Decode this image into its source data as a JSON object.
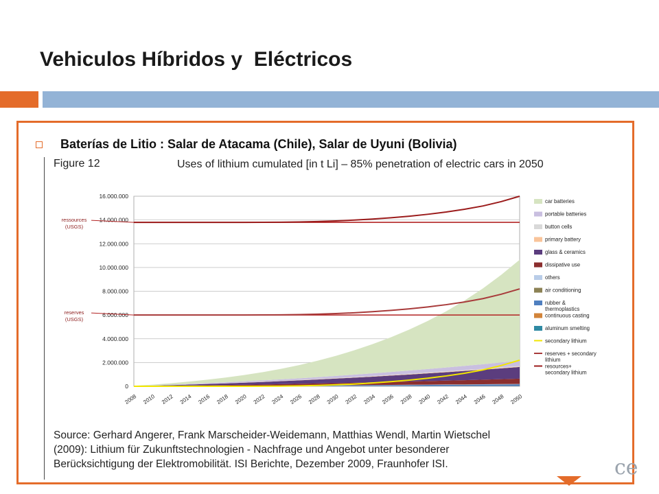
{
  "slide": {
    "title": "Vehiculos Híbridos y  Eléctricos",
    "bullet": "Baterías de Litio : Salar de Atacama (Chile), Salar de Uyuni (Bolivia)",
    "figure_label": "Figure 12",
    "figure_title": "Uses of lithium cumulated [in t Li] – 85% penetration of electric cars in 2050",
    "source_lines": [
      "Source: Gerhard Angerer, Frank Marscheider-Weidemann, Matthias Wendl, Martin Wietschel",
      "(2009): Lithium für Zukunftstechnologien - Nachfrage und Angebot unter besonderer",
      "Berücksichtigung der Elektromobilität. ISI Berichte, Dezember 2009, Fraunhofer ISI."
    ],
    "logo_fragment": "ce",
    "colors": {
      "accent_orange": "#e46c2a",
      "accent_blue": "#93b3d6"
    }
  },
  "chart_data": {
    "type": "area",
    "title": "Uses of lithium cumulated [in t Li] – 85% penetration of electric cars in 2050",
    "xlabel": "",
    "ylabel": "",
    "ylim": [
      0,
      16000000
    ],
    "y_ticks": [
      "16.000.000",
      "14.000.000",
      "12.000.000",
      "10.000.000",
      "8.000.000",
      "6.000.000",
      "4.000.000",
      "2.000.000",
      "0"
    ],
    "y_tick_values": [
      16000000,
      14000000,
      12000000,
      10000000,
      8000000,
      6000000,
      4000000,
      2000000,
      0
    ],
    "x": [
      "2008",
      "2010",
      "2012",
      "2014",
      "2016",
      "2018",
      "2020",
      "2022",
      "2024",
      "2026",
      "2028",
      "2030",
      "2032",
      "2034",
      "2036",
      "2038",
      "2040",
      "2042",
      "2044",
      "2046",
      "2048",
      "2050"
    ],
    "grid": true,
    "legend_position": "right",
    "reference_lines": [
      {
        "label": "ressources (USGS)",
        "label_lines": [
          "ressources",
          "(USGS)"
        ],
        "value": 13800000,
        "color": "#b22222"
      },
      {
        "label": "reserves (USGS)",
        "label_lines": [
          "reserves",
          "(USGS)"
        ],
        "value": 6000000,
        "color": "#b22222"
      }
    ],
    "series": [
      {
        "name": "car batteries",
        "kind": "area",
        "color": "#d6e4c1",
        "values": [
          20000,
          60000,
          120000,
          200000,
          290000,
          400000,
          530000,
          690000,
          880000,
          1110000,
          1380000,
          1690000,
          2050000,
          2460000,
          2920000,
          3450000,
          4050000,
          4730000,
          5500000,
          6380000,
          7380000,
          8500000
        ]
      },
      {
        "name": "portable batteries",
        "kind": "area",
        "color": "#c9bfe0",
        "values": [
          5000,
          15000,
          27000,
          40000,
          55000,
          70000,
          86000,
          103000,
          121000,
          140000,
          160000,
          181000,
          203000,
          226000,
          250000,
          275000,
          301000,
          328000,
          356000,
          385000,
          415000,
          446000
        ]
      },
      {
        "name": "button cells",
        "kind": "area",
        "color": "#d9d9d9",
        "values": [
          1000,
          3000,
          5000,
          7000,
          9000,
          11000,
          13000,
          15000,
          17000,
          19000,
          21000,
          23000,
          25000,
          27000,
          29000,
          31000,
          33000,
          35000,
          37000,
          39000,
          41000,
          43000
        ]
      },
      {
        "name": "primary battery",
        "kind": "area",
        "color": "#f9c49a",
        "values": [
          1000,
          2000,
          4000,
          6000,
          8000,
          10000,
          12000,
          14000,
          16000,
          18000,
          20000,
          22000,
          24000,
          26000,
          28000,
          30000,
          32000,
          34000,
          36000,
          38000,
          40000,
          42000
        ]
      },
      {
        "name": "glass & ceramics",
        "kind": "area",
        "color": "#5b3d7e",
        "values": [
          10000,
          30000,
          55000,
          80000,
          110000,
          140000,
          175000,
          210000,
          250000,
          290000,
          335000,
          380000,
          430000,
          480000,
          535000,
          590000,
          650000,
          710000,
          775000,
          840000,
          910000,
          980000
        ]
      },
      {
        "name": "dissipative use",
        "kind": "area",
        "color": "#8b2e2e",
        "values": [
          5000,
          15000,
          27000,
          40000,
          54000,
          69000,
          85000,
          102000,
          120000,
          139000,
          159000,
          180000,
          202000,
          225000,
          249000,
          274000,
          300000,
          327000,
          355000,
          384000,
          414000,
          445000
        ]
      },
      {
        "name": "others",
        "kind": "area",
        "color": "#b9cde8",
        "values": [
          1000,
          2000,
          3000,
          4000,
          5000,
          6000,
          7000,
          8000,
          9000,
          10000,
          11000,
          12000,
          13000,
          14000,
          15000,
          16000,
          17000,
          18000,
          19000,
          20000,
          21000,
          22000
        ]
      },
      {
        "name": "air conditioning",
        "kind": "area",
        "color": "#8c8255",
        "values": [
          500,
          1000,
          1500,
          2000,
          2500,
          3000,
          3500,
          4000,
          4500,
          5000,
          5500,
          6000,
          6500,
          7000,
          7500,
          8000,
          8500,
          9000,
          9500,
          10000,
          10500,
          11000
        ]
      },
      {
        "name": "rubber & thermoplastics",
        "kind": "area",
        "color": "#4f7fbf",
        "values": [
          2000,
          5000,
          9000,
          13000,
          17000,
          22000,
          27000,
          32000,
          38000,
          44000,
          50000,
          57000,
          64000,
          71000,
          79000,
          87000,
          95000,
          104000,
          113000,
          122000,
          132000,
          142000
        ]
      },
      {
        "name": "continuous casting",
        "kind": "area",
        "color": "#d2843a",
        "values": [
          500,
          1000,
          1500,
          2000,
          2500,
          3000,
          3500,
          4000,
          4500,
          5000,
          5500,
          6000,
          6500,
          7000,
          7500,
          8000,
          8500,
          9000,
          9500,
          10000,
          10500,
          11000
        ]
      },
      {
        "name": "aluminum smelting",
        "kind": "area",
        "color": "#2f8aa3",
        "values": [
          500,
          1000,
          1500,
          2000,
          2500,
          3000,
          3500,
          4000,
          4500,
          5000,
          5500,
          6000,
          6500,
          7000,
          7500,
          8000,
          8500,
          9000,
          9500,
          10000,
          10500,
          11000
        ]
      },
      {
        "name": "secondary lithium",
        "kind": "line",
        "color": "#f2e600",
        "values": [
          0,
          0,
          0,
          0,
          0,
          0,
          0,
          5000,
          15000,
          35000,
          70000,
          120000,
          190000,
          280000,
          390000,
          520000,
          680000,
          870000,
          1100000,
          1380000,
          1750000,
          2200000
        ]
      },
      {
        "name": "reserves + secondary lithium",
        "kind": "line",
        "color": "#a83a3a",
        "values": [
          6000000,
          6000000,
          6000000,
          6000000,
          6000000,
          6000000,
          6000000,
          6005000,
          6015000,
          6035000,
          6070000,
          6120000,
          6190000,
          6280000,
          6390000,
          6520000,
          6680000,
          6870000,
          7100000,
          7380000,
          7750000,
          8200000
        ]
      },
      {
        "name": "resources+ secondary lithium",
        "kind": "line",
        "color": "#9b1b1b",
        "values": [
          13800000,
          13800000,
          13800000,
          13800000,
          13800000,
          13800000,
          13800000,
          13805000,
          13815000,
          13835000,
          13870000,
          13920000,
          13990000,
          14080000,
          14190000,
          14320000,
          14480000,
          14670000,
          14900000,
          15180000,
          15550000,
          16000000
        ]
      }
    ],
    "legend": [
      {
        "label": "car batteries",
        "lines": [
          "car batteries"
        ],
        "color": "#d6e4c1",
        "kind": "box"
      },
      {
        "label": "portable batteries",
        "lines": [
          "portable batteries"
        ],
        "color": "#c9bfe0",
        "kind": "box"
      },
      {
        "label": "button cells",
        "lines": [
          "button cells"
        ],
        "color": "#d9d9d9",
        "kind": "box"
      },
      {
        "label": "primary battery",
        "lines": [
          "primary battery"
        ],
        "color": "#f9c49a",
        "kind": "box"
      },
      {
        "label": "glass & ceramics",
        "lines": [
          "glass & ceramics"
        ],
        "color": "#5b3d7e",
        "kind": "box"
      },
      {
        "label": "dissipative use",
        "lines": [
          "dissipative use"
        ],
        "color": "#8b2e2e",
        "kind": "box"
      },
      {
        "label": "others",
        "lines": [
          "others"
        ],
        "color": "#b9cde8",
        "kind": "box"
      },
      {
        "label": "air conditioning",
        "lines": [
          "air conditioning"
        ],
        "color": "#8c8255",
        "kind": "box"
      },
      {
        "label": "rubber & thermoplastics",
        "lines": [
          "rubber &",
          "thermoplastics"
        ],
        "color": "#4f7fbf",
        "kind": "box"
      },
      {
        "label": "continuous casting",
        "lines": [
          "continuous casting"
        ],
        "color": "#d2843a",
        "kind": "box"
      },
      {
        "label": "aluminum smelting",
        "lines": [
          "aluminum smelting"
        ],
        "color": "#2f8aa3",
        "kind": "box"
      },
      {
        "label": "secondary lithium",
        "lines": [
          "secondary lithium"
        ],
        "color": "#f2e600",
        "kind": "line"
      },
      {
        "label": "reserves + secondary lithium",
        "lines": [
          "reserves + secondary",
          "lithium"
        ],
        "color": "#a83a3a",
        "kind": "line"
      },
      {
        "label": "resources+ secondary lithium",
        "lines": [
          "resources+",
          "secondary lithium"
        ],
        "color": "#9b1b1b",
        "kind": "line"
      }
    ]
  }
}
